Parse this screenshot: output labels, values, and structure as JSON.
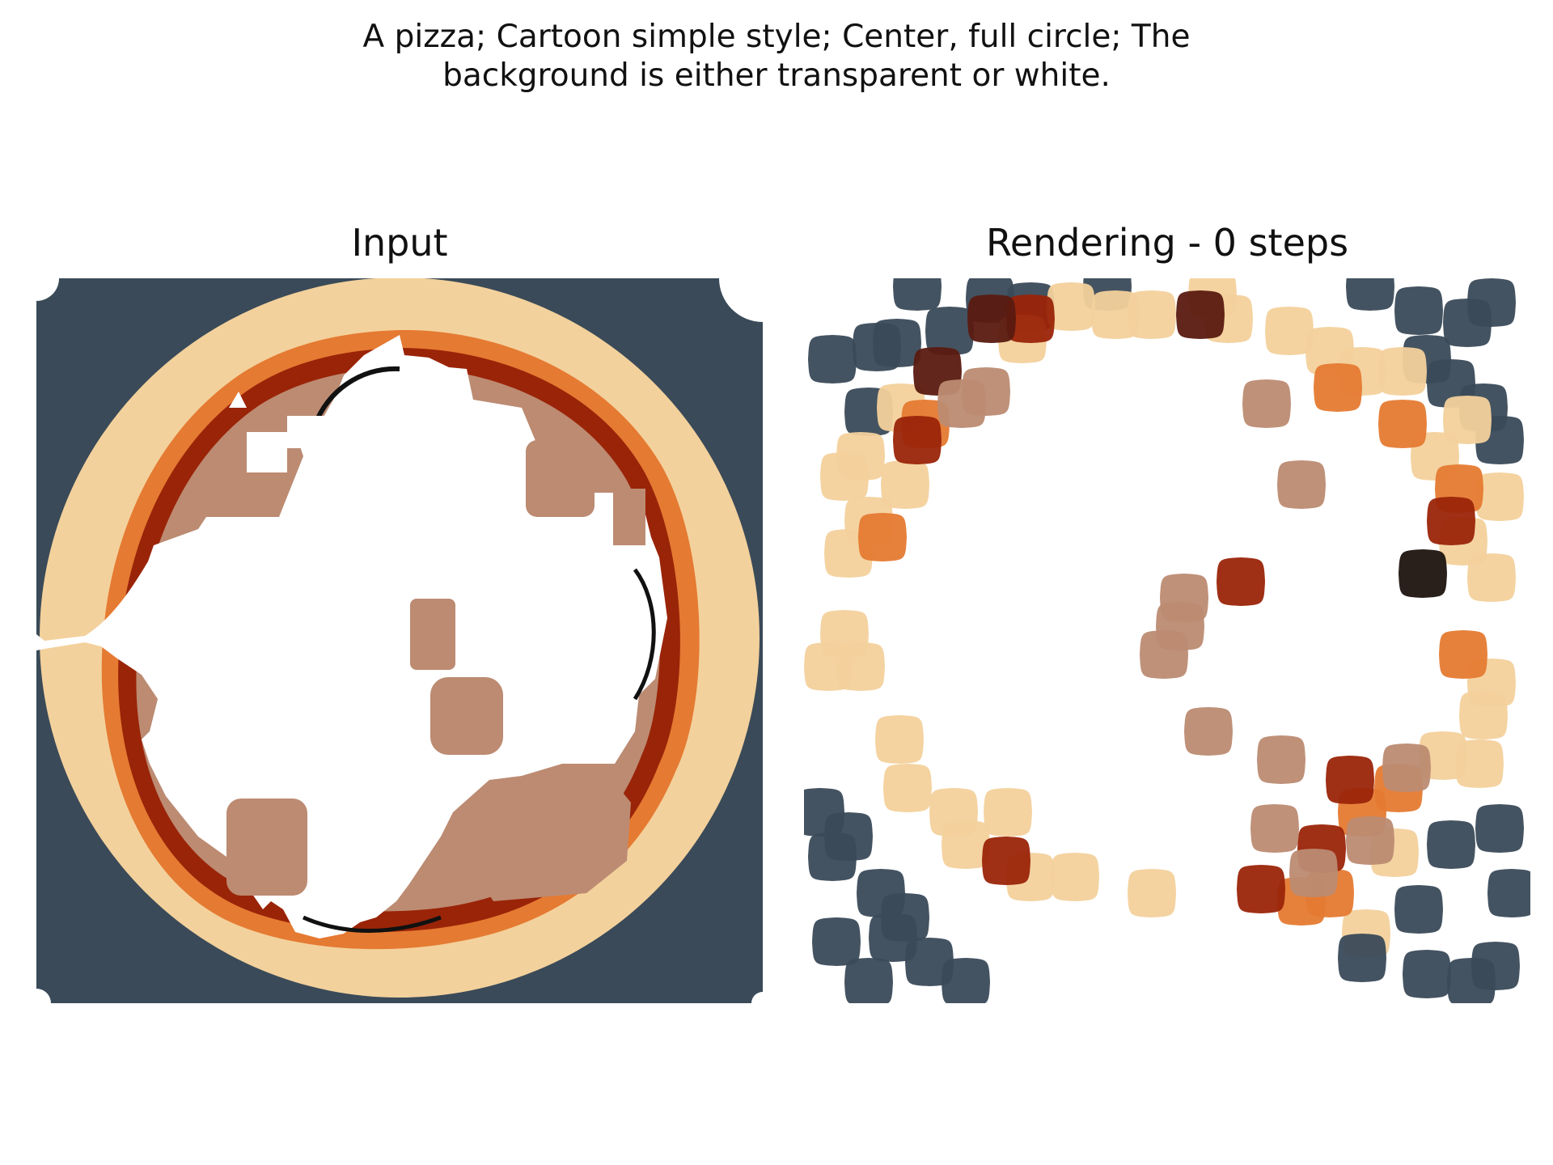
{
  "prompt": {
    "line1": "A pizza; Cartoon simple style; Center, full circle; The",
    "line2": "background is either transparent or white."
  },
  "panels": {
    "input_title": "Input",
    "rendering_title": "Rendering - 0 steps"
  },
  "colors": {
    "background_slate": "#3a4a58",
    "crust": "#f3d19c",
    "sauce_orange": "#e57a32",
    "sauce_red": "#9a2408",
    "topping_brown": "#bc8b72",
    "dark_maroon": "#5a1a10",
    "almost_black": "#1e1410"
  }
}
